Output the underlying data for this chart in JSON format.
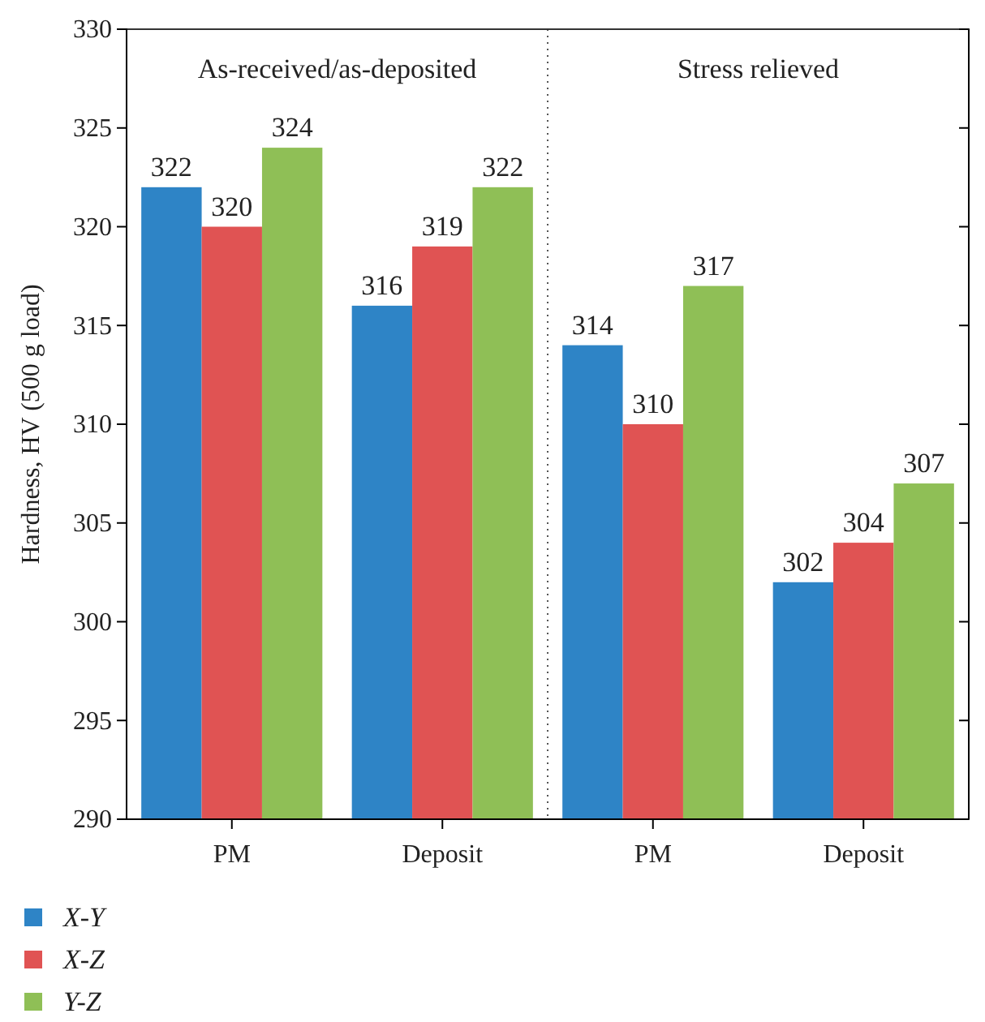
{
  "chart_data": {
    "type": "bar",
    "ylabel": "Hardness, HV (500 g load)",
    "categories": [
      "PM",
      "Deposit",
      "PM",
      "Deposit"
    ],
    "series": [
      {
        "name": "X-Y",
        "color": "#2e84c6",
        "values": [
          322,
          316,
          314,
          302
        ]
      },
      {
        "name": "X-Z",
        "color": "#e05353",
        "values": [
          320,
          319,
          310,
          304
        ]
      },
      {
        "name": "Y-Z",
        "color": "#8fbf56",
        "values": [
          324,
          322,
          317,
          307
        ]
      }
    ],
    "ylim": [
      290,
      330
    ],
    "yticks": [
      290,
      295,
      300,
      305,
      310,
      315,
      320,
      325,
      330
    ],
    "data_labels": true,
    "legend": "bottom left",
    "annotations": [
      "As-received/as-deposited",
      "Stress relieved"
    ]
  }
}
